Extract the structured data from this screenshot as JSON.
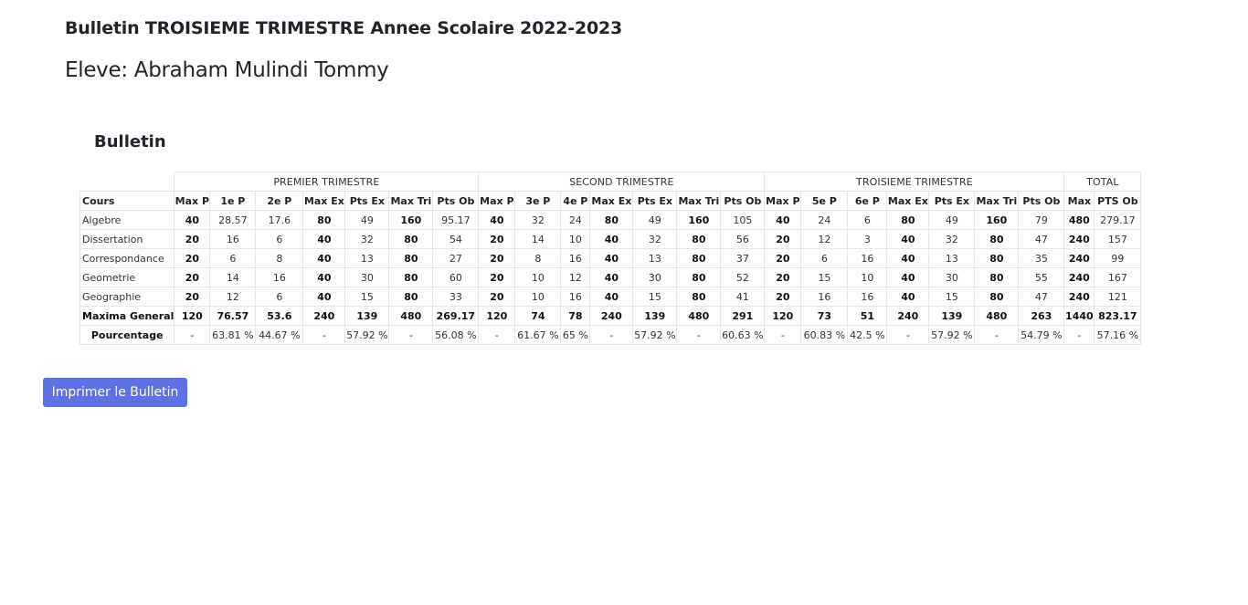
{
  "header": {
    "title": "Bulletin TROISIEME TRIMESTRE Annee Scolaire 2022-2023",
    "student": "Eleve: Abraham Mulindi Tommy"
  },
  "section": {
    "title": "Bulletin"
  },
  "table": {
    "groups": [
      "PREMIER TRIMESTRE",
      "SECOND TRIMESTRE",
      "TROISIEME TRIMESTRE",
      "TOTAL"
    ],
    "columns": [
      "Cours",
      "Max P",
      "1e P",
      "2e P",
      "Max Ex",
      "Pts Ex",
      "Max Tri",
      "Pts Ob",
      "Max P",
      "3e P",
      "4e P",
      "Max Ex",
      "Pts Ex",
      "Max Tri",
      "Pts Ob",
      "Max P",
      "5e P",
      "6e P",
      "Max Ex",
      "Pts Ex",
      "Max Tri",
      "Pts Ob",
      "Max",
      "PTS Ob"
    ],
    "rows": [
      [
        "Algebre",
        "40",
        "28.57",
        "17.6",
        "80",
        "49",
        "160",
        "95.17",
        "40",
        "32",
        "24",
        "80",
        "49",
        "160",
        "105",
        "40",
        "24",
        "6",
        "80",
        "49",
        "160",
        "79",
        "480",
        "279.17"
      ],
      [
        "Dissertation",
        "20",
        "16",
        "6",
        "40",
        "32",
        "80",
        "54",
        "20",
        "14",
        "10",
        "40",
        "32",
        "80",
        "56",
        "20",
        "12",
        "3",
        "40",
        "32",
        "80",
        "47",
        "240",
        "157"
      ],
      [
        "Correspondance",
        "20",
        "6",
        "8",
        "40",
        "13",
        "80",
        "27",
        "20",
        "8",
        "16",
        "40",
        "13",
        "80",
        "37",
        "20",
        "6",
        "16",
        "40",
        "13",
        "80",
        "35",
        "240",
        "99"
      ],
      [
        "Geometrie",
        "20",
        "14",
        "16",
        "40",
        "30",
        "80",
        "60",
        "20",
        "10",
        "12",
        "40",
        "30",
        "80",
        "52",
        "20",
        "15",
        "10",
        "40",
        "30",
        "80",
        "55",
        "240",
        "167"
      ],
      [
        "Geographie",
        "20",
        "12",
        "6",
        "40",
        "15",
        "80",
        "33",
        "20",
        "10",
        "16",
        "40",
        "15",
        "80",
        "41",
        "20",
        "16",
        "16",
        "40",
        "15",
        "80",
        "47",
        "240",
        "121"
      ]
    ],
    "total_row": [
      "Maxima General",
      "120",
      "76.57",
      "53.6",
      "240",
      "139",
      "480",
      "269.17",
      "120",
      "74",
      "78",
      "240",
      "139",
      "480",
      "291",
      "120",
      "73",
      "51",
      "240",
      "139",
      "480",
      "263",
      "1440",
      "823.17"
    ],
    "percent_row": [
      "Pourcentage",
      "-",
      "63.81 %",
      "44.67 %",
      "-",
      "57.92 %",
      "-",
      "56.08 %",
      "-",
      "61.67 %",
      "65 %",
      "-",
      "57.92 %",
      "-",
      "60.63 %",
      "-",
      "60.83 %",
      "42.5 %",
      "-",
      "57.92 %",
      "-",
      "54.79 %",
      "-",
      "57.16 %"
    ]
  },
  "actions": {
    "print_label": "Imprimer le Bulletin"
  },
  "colors": {
    "button_bg": "#5e72e4",
    "border": "#e6e6e6"
  }
}
